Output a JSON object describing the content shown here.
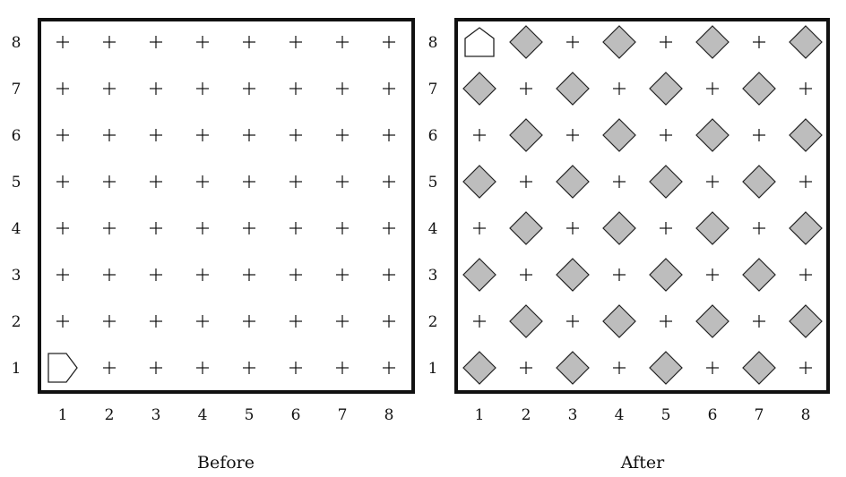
{
  "grid": {
    "cols": 8,
    "rows": 8
  },
  "panels": [
    {
      "caption": "Before",
      "col_labels": [
        "1",
        "2",
        "3",
        "4",
        "5",
        "6",
        "7",
        "8"
      ],
      "row_labels": [
        "1",
        "2",
        "3",
        "4",
        "5",
        "6",
        "7",
        "8"
      ],
      "robot": {
        "col": 1,
        "row": 1,
        "facing": "east"
      },
      "beepers": []
    },
    {
      "caption": "After",
      "col_labels": [
        "1",
        "2",
        "3",
        "4",
        "5",
        "6",
        "7",
        "8"
      ],
      "row_labels": [
        "1",
        "2",
        "3",
        "4",
        "5",
        "6",
        "7",
        "8"
      ],
      "robot": {
        "col": 1,
        "row": 8,
        "facing": "north"
      },
      "beepers": [
        [
          1,
          1
        ],
        [
          3,
          1
        ],
        [
          5,
          1
        ],
        [
          7,
          1
        ],
        [
          2,
          2
        ],
        [
          4,
          2
        ],
        [
          6,
          2
        ],
        [
          8,
          2
        ],
        [
          1,
          3
        ],
        [
          3,
          3
        ],
        [
          5,
          3
        ],
        [
          7,
          3
        ],
        [
          2,
          4
        ],
        [
          4,
          4
        ],
        [
          6,
          4
        ],
        [
          8,
          4
        ],
        [
          1,
          5
        ],
        [
          3,
          5
        ],
        [
          5,
          5
        ],
        [
          7,
          5
        ],
        [
          2,
          6
        ],
        [
          4,
          6
        ],
        [
          6,
          6
        ],
        [
          8,
          6
        ],
        [
          1,
          7
        ],
        [
          3,
          7
        ],
        [
          5,
          7
        ],
        [
          7,
          7
        ],
        [
          2,
          8
        ],
        [
          4,
          8
        ],
        [
          6,
          8
        ],
        [
          8,
          8
        ]
      ]
    }
  ]
}
